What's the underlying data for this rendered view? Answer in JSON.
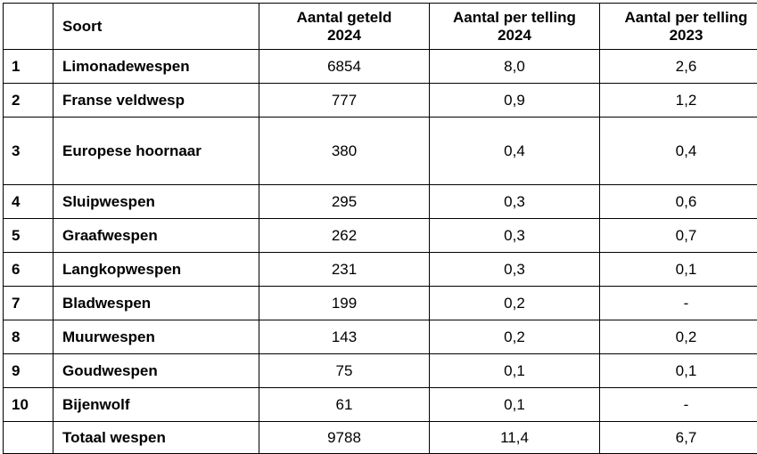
{
  "table": {
    "headers": {
      "rank": "",
      "species": "Soort",
      "count_2024_line1": "Aantal geteld",
      "count_2024_line2": "2024",
      "per_count_2024_line1": "Aantal per telling",
      "per_count_2024_line2": "2024",
      "per_count_2023_line1": "Aantal per telling",
      "per_count_2023_line2": "2023"
    },
    "rows": [
      {
        "rank": "1",
        "species": "Limonadewespen",
        "count_2024": "6854",
        "per_count_2024": "8,0",
        "per_count_2023": "2,6"
      },
      {
        "rank": "2",
        "species": "Franse veldwesp",
        "count_2024": "777",
        "per_count_2024": "0,9",
        "per_count_2023": "1,2"
      },
      {
        "rank": "3",
        "species": "Europese hoornaar",
        "count_2024": "380",
        "per_count_2024": "0,4",
        "per_count_2023": "0,4"
      },
      {
        "rank": "4",
        "species": "Sluipwespen",
        "count_2024": "295",
        "per_count_2024": "0,3",
        "per_count_2023": "0,6"
      },
      {
        "rank": "5",
        "species": "Graafwespen",
        "count_2024": "262",
        "per_count_2024": "0,3",
        "per_count_2023": "0,7"
      },
      {
        "rank": "6",
        "species": "Langkopwespen",
        "count_2024": "231",
        "per_count_2024": "0,3",
        "per_count_2023": "0,1"
      },
      {
        "rank": "7",
        "species": "Bladwespen",
        "count_2024": "199",
        "per_count_2024": "0,2",
        "per_count_2023": "-"
      },
      {
        "rank": "8",
        "species": "Muurwespen",
        "count_2024": "143",
        "per_count_2024": "0,2",
        "per_count_2023": "0,2"
      },
      {
        "rank": "9",
        "species": "Goudwespen",
        "count_2024": "75",
        "per_count_2024": "0,1",
        "per_count_2023": "0,1"
      },
      {
        "rank": "10",
        "species": "Bijenwolf",
        "count_2024": "61",
        "per_count_2024": "0,1",
        "per_count_2023": "-"
      }
    ],
    "total": {
      "rank": "",
      "species": "Totaal wespen",
      "count_2024": "9788",
      "per_count_2024": "11,4",
      "per_count_2023": "6,7"
    }
  }
}
